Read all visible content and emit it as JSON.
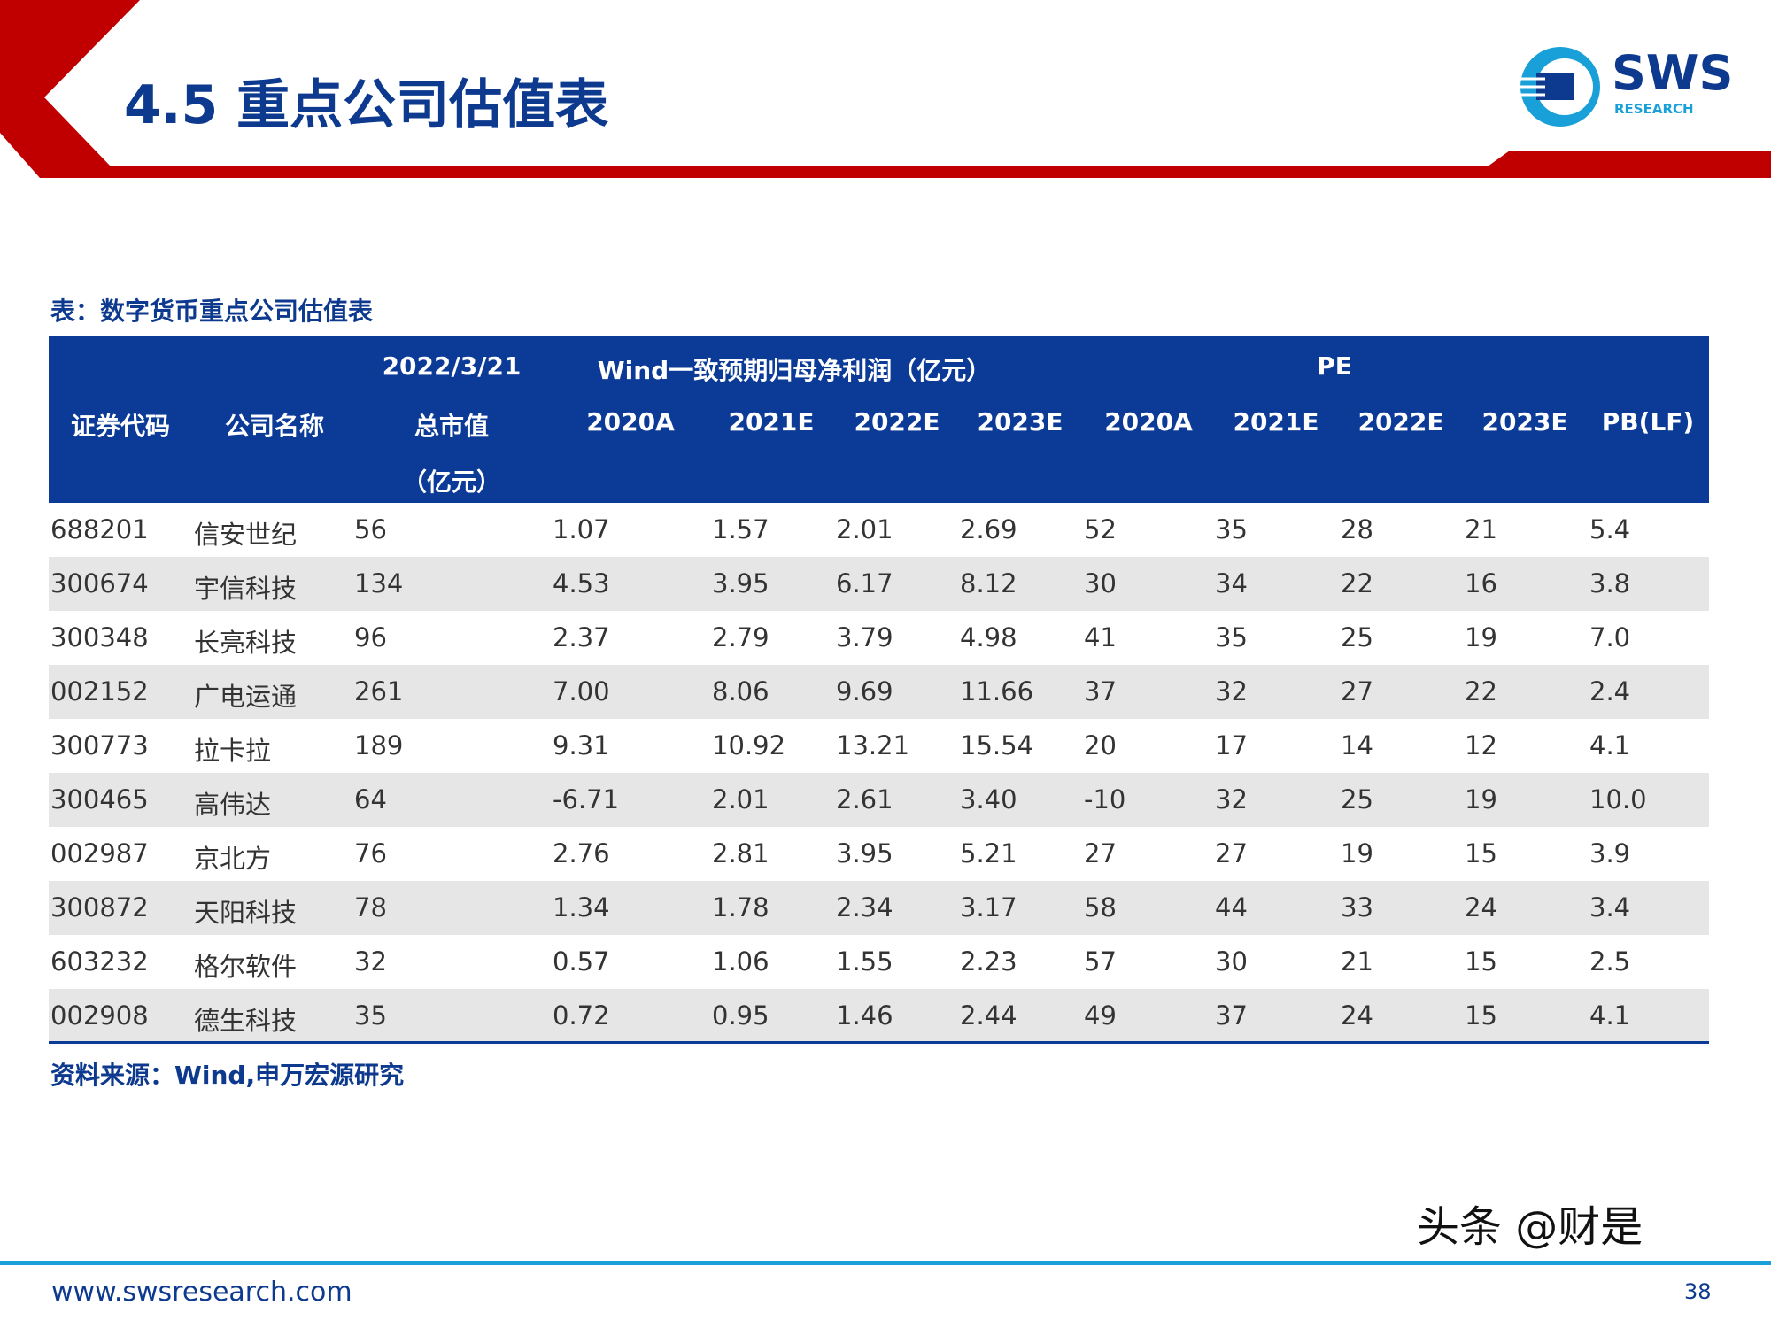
{
  "header": {
    "title": "4.5 重点公司估值表",
    "logo_text": "SWS",
    "logo_sub": "RESEARCH"
  },
  "table": {
    "caption": "表：数字货币重点公司估值表",
    "group_headers": {
      "date": "2022/3/21",
      "profit": "Wind一致预期归母净利润（亿元）",
      "pe": "PE"
    },
    "columns": [
      "证券代码",
      "公司名称",
      "总市值",
      "2020A",
      "2021E",
      "2022E",
      "2023E",
      "2020A",
      "2021E",
      "2022E",
      "2023E",
      "PB(LF)"
    ],
    "mcap_unit": "（亿元）",
    "rows": [
      [
        "688201",
        "信安世纪",
        "56",
        "1.07",
        "1.57",
        "2.01",
        "2.69",
        "52",
        "35",
        "28",
        "21",
        "5.4"
      ],
      [
        "300674",
        "宇信科技",
        "134",
        "4.53",
        "3.95",
        "6.17",
        "8.12",
        "30",
        "34",
        "22",
        "16",
        "3.8"
      ],
      [
        "300348",
        "长亮科技",
        "96",
        "2.37",
        "2.79",
        "3.79",
        "4.98",
        "41",
        "35",
        "25",
        "19",
        "7.0"
      ],
      [
        "002152",
        "广电运通",
        "261",
        "7.00",
        "8.06",
        "9.69",
        "11.66",
        "37",
        "32",
        "27",
        "22",
        "2.4"
      ],
      [
        "300773",
        "拉卡拉",
        "189",
        "9.31",
        "10.92",
        "13.21",
        "15.54",
        "20",
        "17",
        "14",
        "12",
        "4.1"
      ],
      [
        "300465",
        "高伟达",
        "64",
        "-6.71",
        "2.01",
        "2.61",
        "3.40",
        "-10",
        "32",
        "25",
        "19",
        "10.0"
      ],
      [
        "002987",
        "京北方",
        "76",
        "2.76",
        "2.81",
        "3.95",
        "5.21",
        "27",
        "27",
        "19",
        "15",
        "3.9"
      ],
      [
        "300872",
        "天阳科技",
        "78",
        "1.34",
        "1.78",
        "2.34",
        "3.17",
        "58",
        "44",
        "33",
        "24",
        "3.4"
      ],
      [
        "603232",
        "格尔软件",
        "32",
        "0.57",
        "1.06",
        "1.55",
        "2.23",
        "57",
        "30",
        "21",
        "15",
        "2.5"
      ],
      [
        "002908",
        "德生科技",
        "35",
        "0.72",
        "0.95",
        "1.46",
        "2.44",
        "49",
        "37",
        "24",
        "15",
        "4.1"
      ]
    ],
    "source": "资料来源：Wind,申万宏源研究"
  },
  "footer": {
    "url": "www.swsresearch.com",
    "page": "38",
    "watermark": "头条 @财是"
  },
  "colors": {
    "red": "#c00000",
    "navy": "#0b3a97",
    "cyan": "#1aa0d8",
    "row_alt": "#e6e6e6"
  }
}
